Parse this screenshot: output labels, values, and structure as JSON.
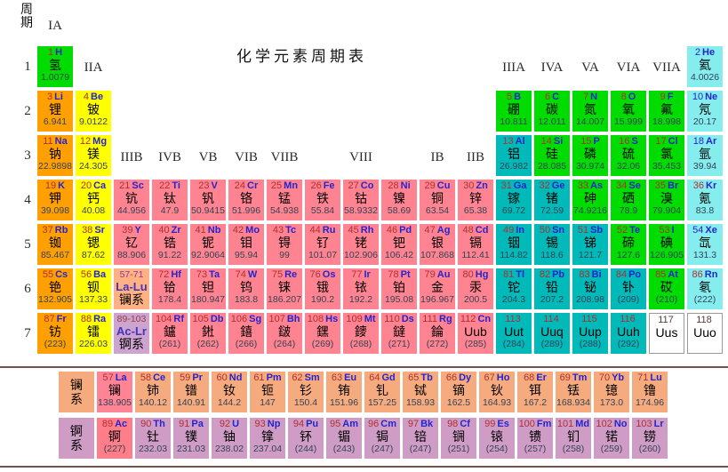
{
  "title": "化学元素周期表",
  "axis": {
    "period_label": "周\n期"
  },
  "periods": [
    "1",
    "2",
    "3",
    "4",
    "5",
    "6",
    "7"
  ],
  "group_labels": [
    {
      "text": "IA",
      "col": 1,
      "band": "top"
    },
    {
      "text": "IIA",
      "col": 2,
      "band": "mid"
    },
    {
      "text": "IIIB",
      "col": 3,
      "band": "low"
    },
    {
      "text": "IVB",
      "col": 4,
      "band": "low"
    },
    {
      "text": "VB",
      "col": 5,
      "band": "low"
    },
    {
      "text": "VIB",
      "col": 6,
      "band": "low"
    },
    {
      "text": "VIIB",
      "col": 7,
      "band": "low"
    },
    {
      "text": "VIII",
      "col": 9,
      "band": "low"
    },
    {
      "text": "IB",
      "col": 11,
      "band": "low"
    },
    {
      "text": "IIB",
      "col": 12,
      "band": "low"
    },
    {
      "text": "IIIA",
      "col": 13,
      "band": "mid"
    },
    {
      "text": "IVA",
      "col": 14,
      "band": "mid"
    },
    {
      "text": "VA",
      "col": 15,
      "band": "mid"
    },
    {
      "text": "VIA",
      "col": 16,
      "band": "mid"
    },
    {
      "text": "VIIA",
      "col": 17,
      "band": "mid"
    }
  ],
  "colors": {
    "alk": "#ff9f00",
    "ae": "#ffff00",
    "tm": "#ff8390",
    "pmetal": "#00b9b9",
    "nm": "#00dc00",
    "ng": "#85eded",
    "unk": "#ffffff",
    "lan": "#f6ab7f",
    "lanhl": "#ff8496",
    "act": "#cf9cc6",
    "acthl": "#ff7e89",
    "lanph": "#ffb183",
    "actph": "#cda4d0",
    "num_text": "#b03030",
    "sym_text": "#2525cd",
    "name_text": "#000000",
    "mass_text": "#334455",
    "blue_text": "#2525cd",
    "range_lan": "#8a35a0",
    "range_act": "#99403a",
    "divider": "#6e584e"
  },
  "placeholders": [
    {
      "range": "57-71",
      "sym": "La-Lu",
      "name": "镧系",
      "cat": "lanph",
      "r": 6,
      "c": 3
    },
    {
      "range": "89-103",
      "sym": "Ac-Lr",
      "name": "锕系",
      "cat": "actph",
      "r": 7,
      "c": 3
    }
  ],
  "series_labels": {
    "lan": "镧\n系",
    "act": "锕\n系"
  },
  "elements": [
    {
      "z": "1",
      "sym": "H",
      "name": "氢",
      "mass": "1.0079",
      "cat": "nm",
      "r": 1,
      "c": 1
    },
    {
      "z": "2",
      "sym": "He",
      "name": "氦",
      "mass": "4.0026",
      "cat": "ng",
      "r": 1,
      "c": 18,
      "zblue": true
    },
    {
      "z": "3",
      "sym": "Li",
      "name": "锂",
      "mass": "6.941",
      "cat": "alk",
      "r": 2,
      "c": 1
    },
    {
      "z": "4",
      "sym": "Be",
      "name": "铍",
      "mass": "9.0122",
      "cat": "ae",
      "r": 2,
      "c": 2
    },
    {
      "z": "5",
      "sym": "B",
      "name": "硼",
      "mass": "10.811",
      "cat": "nm",
      "r": 2,
      "c": 13
    },
    {
      "z": "6",
      "sym": "C",
      "name": "碳",
      "mass": "12.011",
      "cat": "nm",
      "r": 2,
      "c": 14
    },
    {
      "z": "7",
      "sym": "N",
      "name": "氮",
      "mass": "14.007",
      "cat": "nm",
      "r": 2,
      "c": 15
    },
    {
      "z": "8",
      "sym": "O",
      "name": "氧",
      "mass": "15.999",
      "cat": "nm",
      "r": 2,
      "c": 16
    },
    {
      "z": "9",
      "sym": "F",
      "name": "氟",
      "mass": "18.998",
      "cat": "nm",
      "r": 2,
      "c": 17
    },
    {
      "z": "10",
      "sym": "Ne",
      "name": "氖",
      "mass": "20.17",
      "cat": "ng",
      "r": 2,
      "c": 18,
      "zblue": true
    },
    {
      "z": "11",
      "sym": "Na",
      "name": "钠",
      "mass": "22.9898",
      "cat": "alk",
      "r": 3,
      "c": 1
    },
    {
      "z": "12",
      "sym": "Mg",
      "name": "镁",
      "mass": "24.305",
      "cat": "ae",
      "r": 3,
      "c": 2
    },
    {
      "z": "13",
      "sym": "Al",
      "name": "铝",
      "mass": "26.982",
      "cat": "pmetal",
      "r": 3,
      "c": 13
    },
    {
      "z": "14",
      "sym": "Si",
      "name": "硅",
      "mass": "28.085",
      "cat": "nm",
      "r": 3,
      "c": 14
    },
    {
      "z": "15",
      "sym": "P",
      "name": "磷",
      "mass": "30.974",
      "cat": "nm",
      "r": 3,
      "c": 15
    },
    {
      "z": "16",
      "sym": "S",
      "name": "硫",
      "mass": "32.06",
      "cat": "nm",
      "r": 3,
      "c": 16
    },
    {
      "z": "17",
      "sym": "Cl",
      "name": "氯",
      "mass": "35.453",
      "cat": "nm",
      "r": 3,
      "c": 17
    },
    {
      "z": "18",
      "sym": "Ar",
      "name": "氩",
      "mass": "39.94",
      "cat": "ng",
      "r": 3,
      "c": 18,
      "zblue": true
    },
    {
      "z": "19",
      "sym": "K",
      "name": "钾",
      "mass": "39.098",
      "cat": "alk",
      "r": 4,
      "c": 1
    },
    {
      "z": "20",
      "sym": "Ca",
      "name": "钙",
      "mass": "40.08",
      "cat": "ae",
      "r": 4,
      "c": 2
    },
    {
      "z": "21",
      "sym": "Sc",
      "name": "钪",
      "mass": "44.956",
      "cat": "tm",
      "r": 4,
      "c": 3
    },
    {
      "z": "22",
      "sym": "Ti",
      "name": "钛",
      "mass": "47.9",
      "cat": "tm",
      "r": 4,
      "c": 4
    },
    {
      "z": "23",
      "sym": "V",
      "name": "钒",
      "mass": "50.9415",
      "cat": "tm",
      "r": 4,
      "c": 5
    },
    {
      "z": "24",
      "sym": "Cr",
      "name": "铬",
      "mass": "51.996",
      "cat": "tm",
      "r": 4,
      "c": 6
    },
    {
      "z": "25",
      "sym": "Mn",
      "name": "锰",
      "mass": "54.938",
      "cat": "tm",
      "r": 4,
      "c": 7
    },
    {
      "z": "26",
      "sym": "Fe",
      "name": "铁",
      "mass": "55.84",
      "cat": "tm",
      "r": 4,
      "c": 8
    },
    {
      "z": "27",
      "sym": "Co",
      "name": "钴",
      "mass": "58.9332",
      "cat": "tm",
      "r": 4,
      "c": 9
    },
    {
      "z": "28",
      "sym": "Ni",
      "name": "镍",
      "mass": "58.69",
      "cat": "tm",
      "r": 4,
      "c": 10
    },
    {
      "z": "29",
      "sym": "Cu",
      "name": "铜",
      "mass": "63.54",
      "cat": "tm",
      "r": 4,
      "c": 11
    },
    {
      "z": "30",
      "sym": "Zn",
      "name": "锌",
      "mass": "65.38",
      "cat": "tm",
      "r": 4,
      "c": 12
    },
    {
      "z": "31",
      "sym": "Ga",
      "name": "镓",
      "mass": "69.72",
      "cat": "pmetal",
      "r": 4,
      "c": 13
    },
    {
      "z": "32",
      "sym": "Ge",
      "name": "锗",
      "mass": "72.59",
      "cat": "pmetal",
      "r": 4,
      "c": 14
    },
    {
      "z": "33",
      "sym": "As",
      "name": "砷",
      "mass": "74.9216",
      "cat": "nm",
      "r": 4,
      "c": 15
    },
    {
      "z": "34",
      "sym": "Se",
      "name": "硒",
      "mass": "78.9",
      "cat": "nm",
      "r": 4,
      "c": 16
    },
    {
      "z": "35",
      "sym": "Br",
      "name": "溴",
      "mass": "79.904",
      "cat": "nm",
      "r": 4,
      "c": 17
    },
    {
      "z": "36",
      "sym": "Kr",
      "name": "氪",
      "mass": "83.8",
      "cat": "ng",
      "r": 4,
      "c": 18
    },
    {
      "z": "37",
      "sym": "Rb",
      "name": "铷",
      "mass": "85.467",
      "cat": "alk",
      "r": 5,
      "c": 1
    },
    {
      "z": "38",
      "sym": "Sr",
      "name": "锶",
      "mass": "87.62",
      "cat": "ae",
      "r": 5,
      "c": 2
    },
    {
      "z": "39",
      "sym": "Y",
      "name": "钇",
      "mass": "88.906",
      "cat": "tm",
      "r": 5,
      "c": 3
    },
    {
      "z": "40",
      "sym": "Zr",
      "name": "锆",
      "mass": "91.22",
      "cat": "tm",
      "r": 5,
      "c": 4
    },
    {
      "z": "41",
      "sym": "Nb",
      "name": "铌",
      "mass": "92.9064",
      "cat": "tm",
      "r": 5,
      "c": 5
    },
    {
      "z": "42",
      "sym": "Mo",
      "name": "钼",
      "mass": "95.94",
      "cat": "tm",
      "r": 5,
      "c": 6
    },
    {
      "z": "43",
      "sym": "Tc",
      "name": "锝",
      "mass": "99",
      "cat": "tm",
      "r": 5,
      "c": 7
    },
    {
      "z": "44",
      "sym": "Ru",
      "name": "钌",
      "mass": "101.07",
      "cat": "tm",
      "r": 5,
      "c": 8
    },
    {
      "z": "45",
      "sym": "Rh",
      "name": "铑",
      "mass": "102.906",
      "cat": "tm",
      "r": 5,
      "c": 9
    },
    {
      "z": "46",
      "sym": "Pd",
      "name": "钯",
      "mass": "106.42",
      "cat": "tm",
      "r": 5,
      "c": 10
    },
    {
      "z": "47",
      "sym": "Ag",
      "name": "银",
      "mass": "107.868",
      "cat": "tm",
      "r": 5,
      "c": 11
    },
    {
      "z": "48",
      "sym": "Cd",
      "name": "镉",
      "mass": "112.41",
      "cat": "tm",
      "r": 5,
      "c": 12
    },
    {
      "z": "49",
      "sym": "In",
      "name": "铟",
      "mass": "114.82",
      "cat": "pmetal",
      "r": 5,
      "c": 13
    },
    {
      "z": "50",
      "sym": "Sn",
      "name": "锡",
      "mass": "118.6",
      "cat": "pmetal",
      "r": 5,
      "c": 14
    },
    {
      "z": "51",
      "sym": "Sb",
      "name": "锑",
      "mass": "121.7",
      "cat": "pmetal",
      "r": 5,
      "c": 15
    },
    {
      "z": "52",
      "sym": "Te",
      "name": "碲",
      "mass": "127.6",
      "cat": "nm",
      "r": 5,
      "c": 16
    },
    {
      "z": "53",
      "sym": "I",
      "name": "碘",
      "mass": "126.905",
      "cat": "nm",
      "r": 5,
      "c": 17
    },
    {
      "z": "54",
      "sym": "Xe",
      "name": "氙",
      "mass": "131.3",
      "cat": "ng",
      "r": 5,
      "c": 18,
      "zblue": true
    },
    {
      "z": "55",
      "sym": "Cs",
      "name": "铯",
      "mass": "132.905",
      "cat": "alk",
      "r": 6,
      "c": 1
    },
    {
      "z": "56",
      "sym": "Ba",
      "name": "钡",
      "mass": "137.33",
      "cat": "ae",
      "r": 6,
      "c": 2
    },
    {
      "z": "72",
      "sym": "Hf",
      "name": "铪",
      "mass": "178.4",
      "cat": "tm",
      "r": 6,
      "c": 4
    },
    {
      "z": "73",
      "sym": "Ta",
      "name": "钽",
      "mass": "180.947",
      "cat": "tm",
      "r": 6,
      "c": 5
    },
    {
      "z": "74",
      "sym": "W",
      "name": "钨",
      "mass": "183.8",
      "cat": "tm",
      "r": 6,
      "c": 6
    },
    {
      "z": "75",
      "sym": "Re",
      "name": "铼",
      "mass": "186.207",
      "cat": "tm",
      "r": 6,
      "c": 7
    },
    {
      "z": "76",
      "sym": "Os",
      "name": "锇",
      "mass": "190.2",
      "cat": "tm",
      "r": 6,
      "c": 8
    },
    {
      "z": "77",
      "sym": "Ir",
      "name": "铱",
      "mass": "192.2",
      "cat": "tm",
      "r": 6,
      "c": 9
    },
    {
      "z": "78",
      "sym": "Pt",
      "name": "铂",
      "mass": "195.08",
      "cat": "tm",
      "r": 6,
      "c": 10
    },
    {
      "z": "79",
      "sym": "Au",
      "name": "金",
      "mass": "196.967",
      "cat": "tm",
      "r": 6,
      "c": 11
    },
    {
      "z": "80",
      "sym": "Hg",
      "name": "汞",
      "mass": "200.5",
      "cat": "tm",
      "r": 6,
      "c": 12
    },
    {
      "z": "81",
      "sym": "Tl",
      "name": "铊",
      "mass": "204.3",
      "cat": "pmetal",
      "r": 6,
      "c": 13
    },
    {
      "z": "82",
      "sym": "Pb",
      "name": "铅",
      "mass": "207.2",
      "cat": "pmetal",
      "r": 6,
      "c": 14
    },
    {
      "z": "83",
      "sym": "Bi",
      "name": "铋",
      "mass": "208.98",
      "cat": "pmetal",
      "r": 6,
      "c": 15
    },
    {
      "z": "84",
      "sym": "Po",
      "name": "钋",
      "mass": "(209)",
      "cat": "pmetal",
      "r": 6,
      "c": 16
    },
    {
      "z": "85",
      "sym": "At",
      "name": "砹",
      "mass": "(210)",
      "cat": "nm",
      "r": 6,
      "c": 17
    },
    {
      "z": "86",
      "sym": "Rn",
      "name": "氡",
      "mass": "(222)",
      "cat": "ng",
      "r": 6,
      "c": 18
    },
    {
      "z": "87",
      "sym": "Fr",
      "name": "钫",
      "mass": "(223)",
      "cat": "alk",
      "r": 7,
      "c": 1
    },
    {
      "z": "88",
      "sym": "Ra",
      "name": "镭",
      "mass": "226.03",
      "cat": "ae",
      "r": 7,
      "c": 2
    },
    {
      "z": "104",
      "sym": "Rf",
      "name": "鑪",
      "mass": "(261)",
      "cat": "tm",
      "r": 7,
      "c": 4
    },
    {
      "z": "105",
      "sym": "Db",
      "name": "𨧀",
      "mass": "(262)",
      "cat": "tm",
      "r": 7,
      "c": 5
    },
    {
      "z": "106",
      "sym": "Sg",
      "name": "𨭎",
      "mass": "(266)",
      "cat": "tm",
      "r": 7,
      "c": 6
    },
    {
      "z": "107",
      "sym": "Bh",
      "name": "𨨏",
      "mass": "(264)",
      "cat": "tm",
      "r": 7,
      "c": 7
    },
    {
      "z": "108",
      "sym": "Hs",
      "name": "𨭆",
      "mass": "(269)",
      "cat": "tm",
      "r": 7,
      "c": 8
    },
    {
      "z": "109",
      "sym": "Mt",
      "name": "䥑",
      "mass": "(268)",
      "cat": "tm",
      "r": 7,
      "c": 9
    },
    {
      "z": "110",
      "sym": "Ds",
      "name": "鐽",
      "mass": "(271)",
      "cat": "tm",
      "r": 7,
      "c": 10
    },
    {
      "z": "111",
      "sym": "Rg",
      "name": "錀",
      "mass": "(272)",
      "cat": "tm",
      "r": 7,
      "c": 11
    },
    {
      "z": "112",
      "sym": "Cn",
      "name": "Uub",
      "mass": "(285)",
      "cat": "tm",
      "r": 7,
      "c": 12
    },
    {
      "z": "113",
      "sym": "",
      "name": "Uut",
      "mass": "(284)",
      "cat": "pmetal",
      "r": 7,
      "c": 13
    },
    {
      "z": "114",
      "sym": "",
      "name": "Uuq",
      "mass": "(289)",
      "cat": "pmetal",
      "r": 7,
      "c": 14
    },
    {
      "z": "115",
      "sym": "",
      "name": "Uup",
      "mass": "(288)",
      "cat": "pmetal",
      "r": 7,
      "c": 15
    },
    {
      "z": "116",
      "sym": "",
      "name": "Uuh",
      "mass": "(292)",
      "cat": "pmetal",
      "r": 7,
      "c": 16
    },
    {
      "z": "117",
      "sym": "",
      "name": "Uus",
      "mass": "",
      "cat": "unk",
      "r": 7,
      "c": 17
    },
    {
      "z": "118",
      "sym": "",
      "name": "Uuo",
      "mass": "",
      "cat": "unk",
      "r": 7,
      "c": 18
    }
  ],
  "lanthanides": [
    {
      "z": "57",
      "sym": "La",
      "name": "镧",
      "mass": "138.905",
      "hl": true
    },
    {
      "z": "58",
      "sym": "Ce",
      "name": "铈",
      "mass": "140.12"
    },
    {
      "z": "59",
      "sym": "Pr",
      "name": "镨",
      "mass": "140.91"
    },
    {
      "z": "60",
      "sym": "Nd",
      "name": "钕",
      "mass": "144.2"
    },
    {
      "z": "61",
      "sym": "Pm",
      "name": "钷",
      "mass": "147"
    },
    {
      "z": "62",
      "sym": "Sm",
      "name": "钐",
      "mass": "150.4"
    },
    {
      "z": "63",
      "sym": "Eu",
      "name": "铕",
      "mass": "151.96"
    },
    {
      "z": "64",
      "sym": "Gd",
      "name": "钆",
      "mass": "157.25"
    },
    {
      "z": "65",
      "sym": "Tb",
      "name": "铽",
      "mass": "158.93"
    },
    {
      "z": "66",
      "sym": "Dy",
      "name": "镝",
      "mass": "162.5"
    },
    {
      "z": "67",
      "sym": "Ho",
      "name": "钬",
      "mass": "164.93"
    },
    {
      "z": "68",
      "sym": "Er",
      "name": "铒",
      "mass": "167.2"
    },
    {
      "z": "69",
      "sym": "Tm",
      "name": "铥",
      "mass": "168.934"
    },
    {
      "z": "70",
      "sym": "Yb",
      "name": "镱",
      "mass": "173.0"
    },
    {
      "z": "71",
      "sym": "Lu",
      "name": "镥",
      "mass": "174.96"
    }
  ],
  "actinides": [
    {
      "z": "89",
      "sym": "Ac",
      "name": "锕",
      "mass": "(227)",
      "hl": true
    },
    {
      "z": "90",
      "sym": "Th",
      "name": "钍",
      "mass": "232.03"
    },
    {
      "z": "91",
      "sym": "Pa",
      "name": "镤",
      "mass": "231.03"
    },
    {
      "z": "92",
      "sym": "U",
      "name": "铀",
      "mass": "238.02"
    },
    {
      "z": "93",
      "sym": "Np",
      "name": "镎",
      "mass": "237.04"
    },
    {
      "z": "94",
      "sym": "Pu",
      "name": "钚",
      "mass": "(244)"
    },
    {
      "z": "95",
      "sym": "Am",
      "name": "镅",
      "mass": "(243)"
    },
    {
      "z": "96",
      "sym": "Cm",
      "name": "锔",
      "mass": "(247)"
    },
    {
      "z": "97",
      "sym": "Bk",
      "name": "锫",
      "mass": "(247)"
    },
    {
      "z": "98",
      "sym": "Cf",
      "name": "锎",
      "mass": "(251)"
    },
    {
      "z": "99",
      "sym": "Es",
      "name": "锿",
      "mass": "(254)"
    },
    {
      "z": "100",
      "sym": "Fm",
      "name": "镄",
      "mass": "(257)"
    },
    {
      "z": "101",
      "sym": "Md",
      "name": "钔",
      "mass": "(258)"
    },
    {
      "z": "102",
      "sym": "No",
      "name": "锘",
      "mass": "(259)"
    },
    {
      "z": "103",
      "sym": "Lr",
      "name": "铹",
      "mass": "(260)"
    }
  ]
}
